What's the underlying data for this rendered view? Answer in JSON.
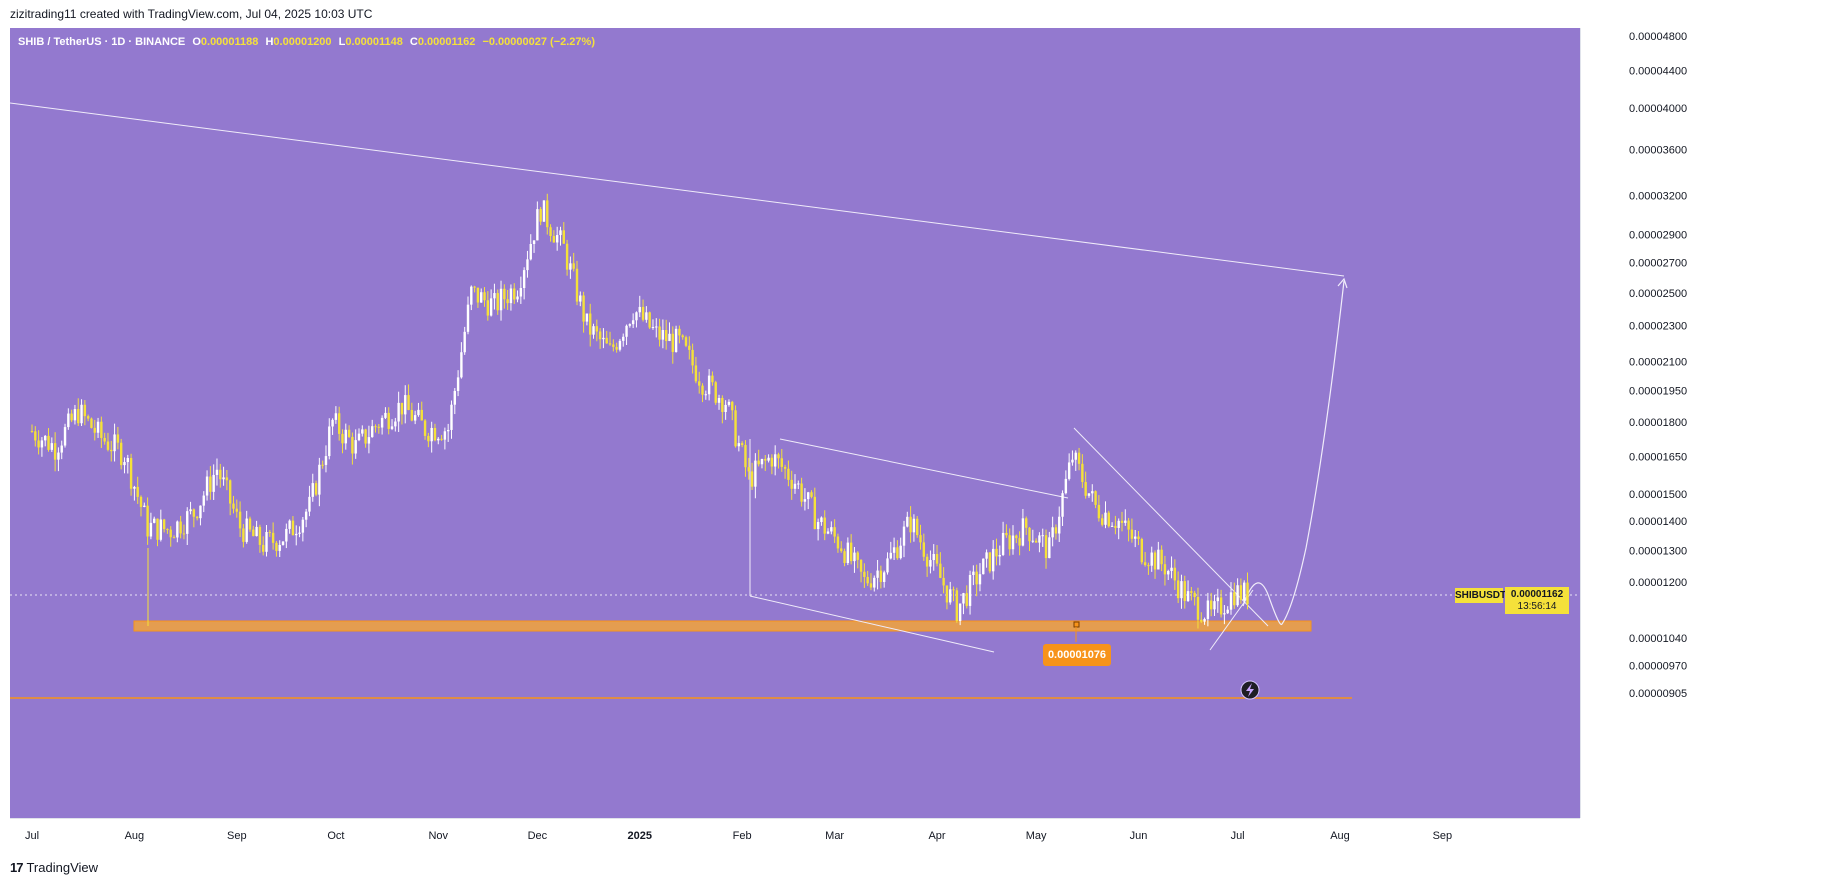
{
  "header": {
    "credit": "zizitrading11 created with TradingView.com, Jul 04, 2025 10:03 UTC"
  },
  "legend": {
    "symbol": "SHIB / TetherUS · 1D · BINANCE",
    "o_label": "O",
    "o_value": "0.00001188",
    "h_label": "H",
    "h_value": "0.00001200",
    "l_label": "L",
    "l_value": "0.00001148",
    "c_label": "C",
    "c_value": "0.00001162",
    "change": "−0.00000027 (−2.27%)"
  },
  "price_tag": {
    "symbol": "SHIBUSDT",
    "price": "0.00001162",
    "countdown": "13:56:14"
  },
  "support_label": "0.00001076",
  "footer": {
    "logo": "17",
    "brand": "TradingView"
  },
  "colors": {
    "background": "#9379cf",
    "candle": "#f5e13a",
    "wick_white": "#ffffff",
    "support_zone": "#f2a33a",
    "support_label_bg": "#f7931a"
  },
  "chart_data": {
    "type": "candlestick",
    "symbol": "SHIBUSDT",
    "interval": "1D",
    "exchange": "BINANCE",
    "y_scale": "log",
    "price_ticks": [
      "0.00004800",
      "0.00004400",
      "0.00004000",
      "0.00003600",
      "0.00003200",
      "0.00002900",
      "0.00002700",
      "0.00002500",
      "0.00002300",
      "0.00002100",
      "0.00001950",
      "0.00001800",
      "0.00001650",
      "0.00001500",
      "0.00001400",
      "0.00001300",
      "0.00001200",
      "0.00001040",
      "0.00000970",
      "0.00000905"
    ],
    "time_ticks": [
      "Jul",
      "Aug",
      "Sep",
      "Oct",
      "Nov",
      "Dec",
      "2025",
      "Feb",
      "Mar",
      "Apr",
      "May",
      "Jun",
      "Jul",
      "Aug",
      "Sep"
    ],
    "close_path": [
      [
        "2024-07-01",
        1.76e-05
      ],
      [
        "2024-07-08",
        1.69e-05
      ],
      [
        "2024-07-15",
        1.85e-05
      ],
      [
        "2024-07-22",
        1.73e-05
      ],
      [
        "2024-07-29",
        1.66e-05
      ],
      [
        "2024-08-05",
        1.38e-05
      ],
      [
        "2024-08-12",
        1.37e-05
      ],
      [
        "2024-08-19",
        1.43e-05
      ],
      [
        "2024-08-26",
        1.6e-05
      ],
      [
        "2024-09-02",
        1.38e-05
      ],
      [
        "2024-09-09",
        1.32e-05
      ],
      [
        "2024-09-16",
        1.35e-05
      ],
      [
        "2024-09-23",
        1.45e-05
      ],
      [
        "2024-09-30",
        1.8e-05
      ],
      [
        "2024-10-07",
        1.69e-05
      ],
      [
        "2024-10-14",
        1.8e-05
      ],
      [
        "2024-10-21",
        1.88e-05
      ],
      [
        "2024-10-28",
        1.77e-05
      ],
      [
        "2024-11-04",
        1.77e-05
      ],
      [
        "2024-11-11",
        2.5e-05
      ],
      [
        "2024-11-18",
        2.42e-05
      ],
      [
        "2024-11-25",
        2.55e-05
      ],
      [
        "2024-12-02",
        3.1e-05
      ],
      [
        "2024-12-09",
        2.8e-05
      ],
      [
        "2024-12-16",
        2.3e-05
      ],
      [
        "2024-12-23",
        2.15e-05
      ],
      [
        "2024-12-30",
        2.4e-05
      ],
      [
        "2025-01-06",
        2.25e-05
      ],
      [
        "2025-01-13",
        2.2e-05
      ],
      [
        "2025-01-20",
        2e-05
      ],
      [
        "2025-01-27",
        1.9e-05
      ],
      [
        "2025-02-03",
        1.56e-05
      ],
      [
        "2025-02-10",
        1.65e-05
      ],
      [
        "2025-02-17",
        1.55e-05
      ],
      [
        "2025-02-24",
        1.4e-05
      ],
      [
        "2025-03-03",
        1.32e-05
      ],
      [
        "2025-03-10",
        1.2e-05
      ],
      [
        "2025-03-17",
        1.26e-05
      ],
      [
        "2025-03-24",
        1.4e-05
      ],
      [
        "2025-03-31",
        1.25e-05
      ],
      [
        "2025-04-07",
        1.12e-05
      ],
      [
        "2025-04-14",
        1.23e-05
      ],
      [
        "2025-04-21",
        1.32e-05
      ],
      [
        "2025-04-28",
        1.38e-05
      ],
      [
        "2025-05-05",
        1.3e-05
      ],
      [
        "2025-05-12",
        1.65e-05
      ],
      [
        "2025-05-19",
        1.45e-05
      ],
      [
        "2025-05-26",
        1.4e-05
      ],
      [
        "2025-06-02",
        1.3e-05
      ],
      [
        "2025-06-09",
        1.25e-05
      ],
      [
        "2025-06-16",
        1.15e-05
      ],
      [
        "2025-06-23",
        1.1e-05
      ],
      [
        "2025-06-30",
        1.17e-05
      ],
      [
        "2025-07-04",
        1.162e-05
      ]
    ],
    "support_zone": [
      1.055e-05,
      1.076e-05
    ],
    "annotations": [
      "descending long-term trendline toward ~0.0000260",
      "falling wedge Feb–Apr 2025",
      "descending trendline from May high",
      "projected path dipping to support then rising toward ~0.0000255"
    ]
  }
}
